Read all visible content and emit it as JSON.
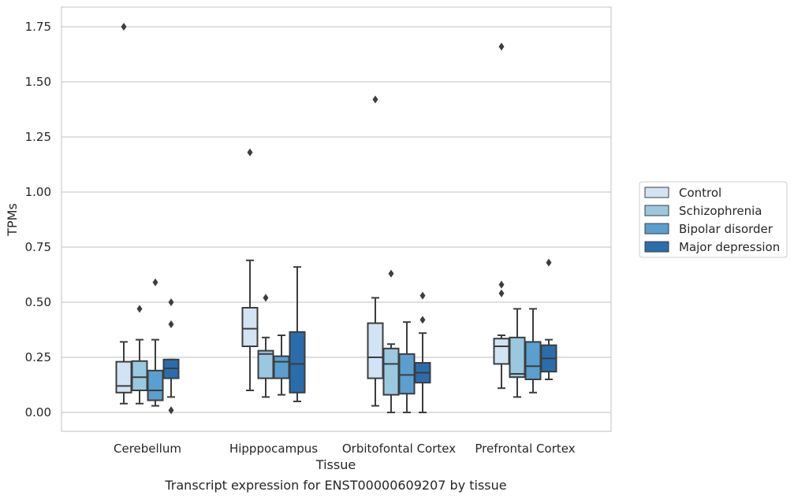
{
  "chart_data": {
    "type": "box",
    "title": "",
    "caption": "Transcript expression for ENST00000609207 by tissue",
    "xlabel": "Tissue",
    "ylabel": "TPMs",
    "ylim": [
      -0.08,
      1.84
    ],
    "yticks": [
      0.0,
      0.25,
      0.5,
      0.75,
      1.0,
      1.25,
      1.5,
      1.75
    ],
    "ytick_labels": [
      "0.00",
      "0.25",
      "0.50",
      "0.75",
      "1.00",
      "1.25",
      "1.50",
      "1.75"
    ],
    "grid": "horizontal",
    "legend_position": "right",
    "categories": [
      "Cerebellum",
      "Hipppocampus",
      "Orbitofontal Cortex",
      "Prefrontal Cortex"
    ],
    "series": [
      {
        "name": "Control",
        "color": "#d2e3f3",
        "boxes": [
          {
            "whisker_low": 0.04,
            "q1": 0.09,
            "median": 0.12,
            "q3": 0.23,
            "whisker_high": 0.32,
            "outliers": [
              1.75
            ]
          },
          {
            "whisker_low": 0.1,
            "q1": 0.3,
            "median": 0.38,
            "q3": 0.475,
            "whisker_high": 0.69,
            "outliers": [
              1.18
            ]
          },
          {
            "whisker_low": 0.03,
            "q1": 0.155,
            "median": 0.25,
            "q3": 0.405,
            "whisker_high": 0.52,
            "outliers": [
              1.42
            ]
          },
          {
            "whisker_low": 0.11,
            "q1": 0.22,
            "median": 0.3,
            "q3": 0.335,
            "whisker_high": 0.35,
            "outliers": [
              1.66,
              0.58,
              0.54
            ]
          }
        ]
      },
      {
        "name": "Schizophrenia",
        "color": "#9ac8e0",
        "boxes": [
          {
            "whisker_low": 0.04,
            "q1": 0.1,
            "median": 0.16,
            "q3": 0.233,
            "whisker_high": 0.33,
            "outliers": [
              0.47
            ]
          },
          {
            "whisker_low": 0.07,
            "q1": 0.155,
            "median": 0.265,
            "q3": 0.28,
            "whisker_high": 0.34,
            "outliers": [
              0.52
            ]
          },
          {
            "whisker_low": 0.0,
            "q1": 0.08,
            "median": 0.22,
            "q3": 0.29,
            "whisker_high": 0.31,
            "outliers": [
              0.63
            ]
          },
          {
            "whisker_low": 0.07,
            "q1": 0.16,
            "median": 0.175,
            "q3": 0.34,
            "whisker_high": 0.47,
            "outliers": []
          }
        ]
      },
      {
        "name": "Bipolar disorder",
        "color": "#5a9fcf",
        "boxes": [
          {
            "whisker_low": 0.03,
            "q1": 0.055,
            "median": 0.1,
            "q3": 0.19,
            "whisker_high": 0.33,
            "outliers": [
              0.59
            ]
          },
          {
            "whisker_low": 0.08,
            "q1": 0.155,
            "median": 0.23,
            "q3": 0.255,
            "whisker_high": 0.35,
            "outliers": []
          },
          {
            "whisker_low": 0.0,
            "q1": 0.085,
            "median": 0.17,
            "q3": 0.265,
            "whisker_high": 0.41,
            "outliers": []
          },
          {
            "whisker_low": 0.09,
            "q1": 0.15,
            "median": 0.21,
            "q3": 0.32,
            "whisker_high": 0.47,
            "outliers": []
          }
        ]
      },
      {
        "name": "Major depression",
        "color": "#2a6dad",
        "boxes": [
          {
            "whisker_low": 0.07,
            "q1": 0.155,
            "median": 0.2,
            "q3": 0.24,
            "whisker_high": 0.24,
            "outliers": [
              0.5,
              0.4,
              0.01
            ]
          },
          {
            "whisker_low": 0.05,
            "q1": 0.09,
            "median": 0.22,
            "q3": 0.365,
            "whisker_high": 0.66,
            "outliers": []
          },
          {
            "whisker_low": 0.0,
            "q1": 0.135,
            "median": 0.18,
            "q3": 0.225,
            "whisker_high": 0.36,
            "outliers": [
              0.53,
              0.42
            ]
          },
          {
            "whisker_low": 0.15,
            "q1": 0.185,
            "median": 0.245,
            "q3": 0.305,
            "whisker_high": 0.33,
            "outliers": [
              0.68
            ]
          }
        ]
      }
    ]
  }
}
